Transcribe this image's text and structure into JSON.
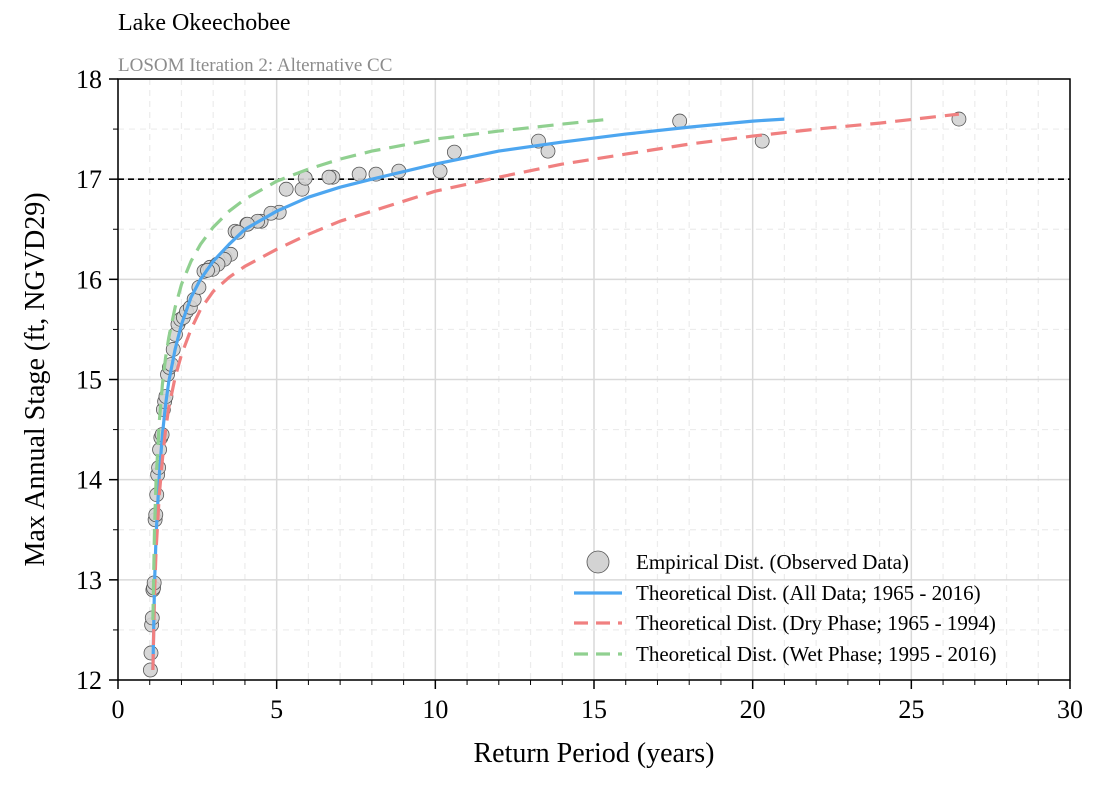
{
  "chart_data": {
    "type": "scatter",
    "title": "Lake Okeechobee",
    "subtitle": "LOSOM Iteration 2: Alternative CC",
    "xlabel": "Return Period (years)",
    "ylabel": "Max Annual Stage (ft, NGVD29)",
    "xlim": [
      0,
      30
    ],
    "ylim": [
      12,
      18
    ],
    "xticks": [
      0,
      5,
      10,
      15,
      20,
      25,
      30
    ],
    "yticks": [
      12,
      13,
      14,
      15,
      16,
      17,
      18
    ],
    "grid": true,
    "reference_line": {
      "y": 17,
      "style": "dashed",
      "color": "#000000"
    },
    "legend": {
      "placement": "bottom-right",
      "entries": [
        "Empirical Dist. (Observed Data)",
        "Theoretical Dist. (All Data; 1965 - 2016)",
        "Theoretical Dist. (Dry Phase; 1965 - 1994)",
        "Theoretical Dist. (Wet Phase; 1995 - 2016)"
      ]
    },
    "series": [
      {
        "name": "Empirical Dist. (Observed Data)",
        "kind": "scatter",
        "color": "#d3d3d3",
        "x": [
          1.02,
          1.04,
          1.06,
          1.08,
          1.1,
          1.12,
          1.14,
          1.17,
          1.19,
          1.22,
          1.25,
          1.28,
          1.31,
          1.35,
          1.39,
          1.43,
          1.47,
          1.51,
          1.56,
          1.62,
          1.68,
          1.74,
          1.81,
          1.89,
          1.97,
          2.06,
          2.16,
          2.28,
          2.4,
          2.55,
          2.71,
          2.9,
          3.12,
          3.38,
          3.69,
          4.06,
          4.51,
          5.08,
          5.8,
          6.77,
          8.13,
          10.15,
          13.55,
          20.3,
          26.5,
          17.7,
          13.25,
          10.6,
          8.85,
          7.6,
          6.65,
          5.9,
          5.3,
          4.82,
          4.4,
          4.08,
          3.78,
          3.55,
          3.35,
          3.15,
          2.98,
          2.82
        ],
        "y": [
          12.1,
          12.27,
          12.55,
          12.62,
          12.9,
          12.92,
          12.97,
          13.6,
          13.65,
          13.85,
          14.05,
          14.12,
          14.3,
          14.42,
          14.45,
          14.7,
          14.78,
          14.83,
          15.05,
          15.12,
          15.15,
          15.3,
          15.45,
          15.55,
          15.6,
          15.62,
          15.68,
          15.72,
          15.8,
          15.92,
          16.08,
          16.12,
          16.15,
          16.22,
          16.48,
          16.55,
          16.58,
          16.67,
          16.9,
          17.02,
          17.05,
          17.08,
          17.28,
          17.38,
          17.6,
          17.58,
          17.38,
          17.27,
          17.08,
          17.05,
          17.02,
          17.01,
          16.9,
          16.66,
          16.58,
          16.55,
          16.47,
          16.25,
          16.2,
          16.15,
          16.1,
          16.09
        ]
      },
      {
        "name": "Theoretical Dist. (All Data; 1965 - 2016)",
        "kind": "line",
        "dash": "solid",
        "color": "#4da6f0",
        "x": [
          1.1,
          1.15,
          1.2,
          1.3,
          1.4,
          1.5,
          1.6,
          1.8,
          2.0,
          2.3,
          2.6,
          3.0,
          3.5,
          4.0,
          5.0,
          6.0,
          7.0,
          8.0,
          10.0,
          12.0,
          14.0,
          16.0,
          18.0,
          20.0,
          21.0
        ],
        "y": [
          12.1,
          12.95,
          13.45,
          14.05,
          14.45,
          14.75,
          14.98,
          15.3,
          15.55,
          15.82,
          16.0,
          16.18,
          16.35,
          16.5,
          16.68,
          16.82,
          16.92,
          17.0,
          17.15,
          17.28,
          17.37,
          17.45,
          17.52,
          17.58,
          17.6
        ]
      },
      {
        "name": "Theoretical Dist. (Dry Phase; 1965 - 1994)",
        "kind": "line",
        "dash": "dashed",
        "color": "#f08080",
        "x": [
          1.1,
          1.15,
          1.2,
          1.3,
          1.4,
          1.5,
          1.6,
          1.8,
          2.0,
          2.3,
          2.6,
          3.0,
          3.5,
          4.0,
          5.0,
          6.0,
          7.0,
          8.0,
          10.0,
          12.0,
          14.0,
          16.0,
          18.0,
          20.0,
          22.0,
          24.0,
          26.5
        ],
        "y": [
          12.1,
          12.85,
          13.3,
          13.85,
          14.2,
          14.5,
          14.72,
          15.02,
          15.25,
          15.5,
          15.7,
          15.88,
          16.02,
          16.13,
          16.3,
          16.45,
          16.58,
          16.68,
          16.88,
          17.02,
          17.15,
          17.25,
          17.35,
          17.43,
          17.5,
          17.56,
          17.65
        ]
      },
      {
        "name": "Theoretical Dist. (Wet Phase; 1995 - 2016)",
        "kind": "line",
        "dash": "dashed",
        "color": "#90d090",
        "x": [
          1.1,
          1.15,
          1.2,
          1.3,
          1.4,
          1.5,
          1.6,
          1.8,
          2.0,
          2.3,
          2.6,
          3.0,
          3.5,
          4.0,
          5.0,
          6.0,
          7.0,
          8.0,
          10.0,
          12.0,
          14.0,
          15.5
        ],
        "y": [
          12.6,
          13.5,
          14.0,
          14.58,
          14.95,
          15.22,
          15.42,
          15.72,
          15.95,
          16.18,
          16.35,
          16.52,
          16.68,
          16.8,
          16.98,
          17.1,
          17.2,
          17.28,
          17.4,
          17.48,
          17.55,
          17.6
        ]
      }
    ]
  }
}
